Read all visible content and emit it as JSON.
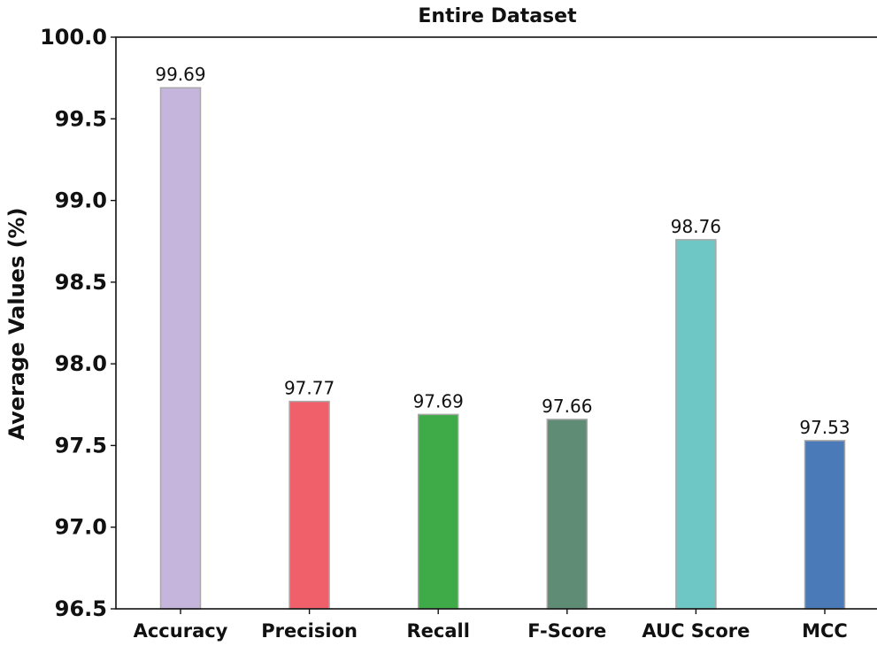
{
  "chart_data": {
    "type": "bar",
    "title": "Entire Dataset",
    "xlabel": "",
    "ylabel": "Average Values (%)",
    "ylim": [
      96.5,
      100.0
    ],
    "yticks": [
      "96.5",
      "97.0",
      "97.5",
      "98.0",
      "98.5",
      "99.0",
      "99.5",
      "100.0"
    ],
    "categories": [
      "Accuracy",
      "Precision",
      "Recall",
      "F-Score",
      "AUC Score",
      "MCC"
    ],
    "values": [
      99.69,
      97.77,
      97.69,
      97.66,
      98.76,
      97.53
    ],
    "value_labels": [
      "99.69",
      "97.77",
      "97.69",
      "97.66",
      "98.76",
      "97.53"
    ],
    "colors": [
      "#c5b4dc",
      "#f0606a",
      "#3faa48",
      "#5e8c74",
      "#6ec7c5",
      "#4a7ab8"
    ],
    "bar_edge_color": "#a8a8a8",
    "grid": false,
    "legend": "none"
  }
}
